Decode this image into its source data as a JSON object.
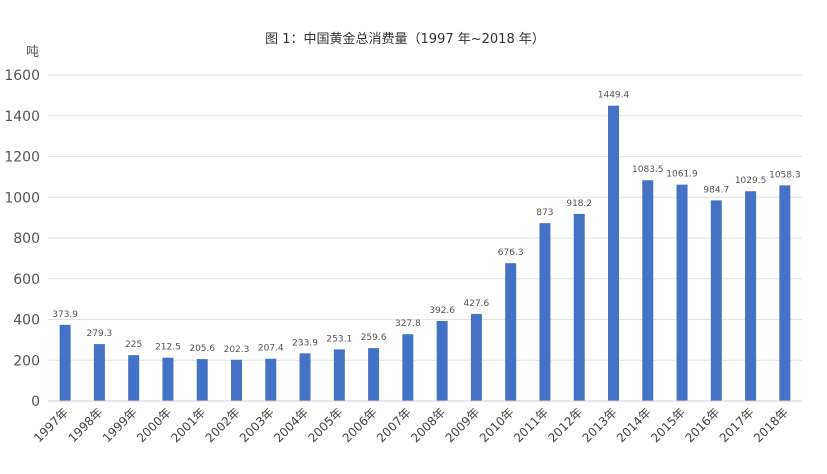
{
  "chart_data": {
    "type": "bar",
    "title": "图 1：中国黄金总消费量（1997 年~2018 年）",
    "ylabel": "吨",
    "xlabel": "",
    "ylim": [
      0,
      1600
    ],
    "yticks": [
      0,
      200,
      400,
      600,
      800,
      1000,
      1200,
      1400,
      1600
    ],
    "grid": true,
    "legend": "none",
    "bar_color": "#4472c4",
    "categories": [
      "1997年",
      "1998年",
      "1999年",
      "2000年",
      "2001年",
      "2002年",
      "2003年",
      "2004年",
      "2005年",
      "2006年",
      "2007年",
      "2008年",
      "2009年",
      "2010年",
      "2011年",
      "2012年",
      "2013年",
      "2014年",
      "2015年",
      "2016年",
      "2017年",
      "2018年"
    ],
    "values": [
      373.9,
      279.3,
      225,
      212.5,
      205.6,
      202.3,
      207.4,
      233.9,
      253.1,
      259.6,
      327.8,
      392.6,
      427.6,
      676.3,
      873,
      918.2,
      1449.4,
      1083.5,
      1061.9,
      984.7,
      1029.5,
      1058.3
    ]
  }
}
